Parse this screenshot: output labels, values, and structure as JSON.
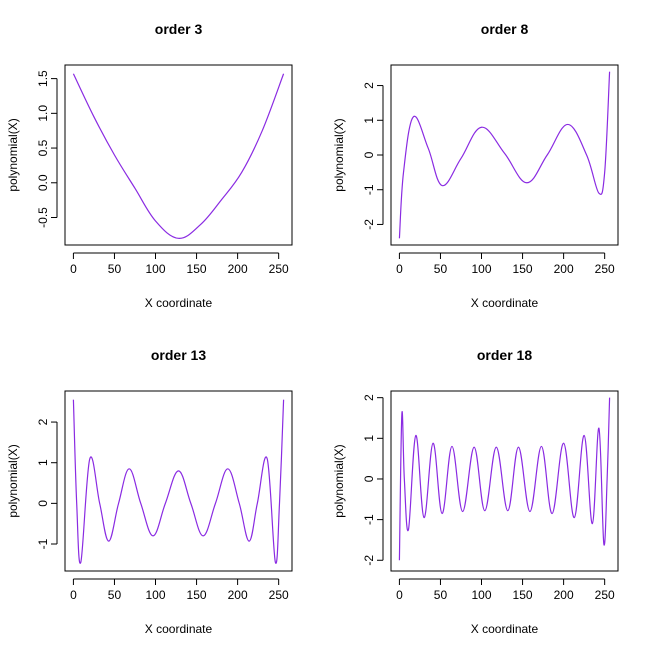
{
  "series_color": "#8a2be2",
  "chart_data": [
    {
      "type": "line",
      "title": "order 3",
      "xlabel": "X coordinate",
      "ylabel": "polynomial(X)",
      "xlim": [
        0,
        256
      ],
      "ylim": [
        -0.8,
        1.6
      ],
      "xticks": [
        0,
        50,
        100,
        150,
        200,
        250
      ],
      "yticks": [
        -0.5,
        0.0,
        0.5,
        1.0,
        1.5
      ],
      "ytick_labels": [
        "-0.5",
        "0.0",
        "0.5",
        "1.0",
        "1.5"
      ],
      "x": [
        0,
        25,
        50,
        75,
        100,
        128,
        155,
        180,
        205,
        230,
        256
      ],
      "y": [
        1.57,
        0.95,
        0.4,
        -0.08,
        -0.55,
        -0.8,
        -0.6,
        -0.25,
        0.15,
        0.75,
        1.57
      ]
    },
    {
      "type": "line",
      "title": "order 8",
      "xlabel": "X coordinate",
      "ylabel": "polynomial(X)",
      "xlim": [
        0,
        256
      ],
      "ylim": [
        -2.4,
        2.4
      ],
      "xticks": [
        0,
        50,
        100,
        150,
        200,
        250
      ],
      "yticks": [
        -2,
        -1,
        0,
        1,
        2
      ],
      "ytick_labels": [
        "-2",
        "-1",
        "0",
        "1",
        "2"
      ],
      "x": [
        0,
        5,
        17,
        35,
        52,
        75,
        100,
        128,
        155,
        180,
        205,
        228,
        243,
        250,
        256
      ],
      "y": [
        -2.4,
        -0.5,
        1.1,
        0.2,
        -0.88,
        -0.1,
        0.8,
        0.05,
        -0.8,
        0.0,
        0.88,
        0.0,
        -1.1,
        -0.5,
        2.4
      ]
    },
    {
      "type": "line",
      "title": "order 13",
      "xlabel": "X coordinate",
      "ylabel": "polynomial(X)",
      "xlim": [
        0,
        256
      ],
      "ylim": [
        -1.5,
        2.6
      ],
      "xticks": [
        0,
        50,
        100,
        150,
        200,
        250
      ],
      "yticks": [
        -1,
        0,
        1,
        2
      ],
      "ytick_labels": [
        "-1",
        "0",
        "1",
        "2"
      ],
      "x": [
        0,
        4,
        9,
        20,
        32,
        43,
        55,
        68,
        82,
        97,
        112,
        128,
        143,
        158,
        173,
        188,
        202,
        214,
        224,
        236,
        246,
        251,
        256
      ],
      "y": [
        2.55,
        0.0,
        -1.45,
        1.1,
        0.0,
        -0.93,
        0.0,
        0.85,
        0.0,
        -0.8,
        0.0,
        0.8,
        0.0,
        -0.8,
        0.0,
        0.85,
        0.0,
        -0.93,
        0.0,
        1.1,
        -1.45,
        0.0,
        2.55
      ]
    },
    {
      "type": "line",
      "title": "order 18",
      "xlabel": "X coordinate",
      "ylabel": "polynomial(X)",
      "xlim": [
        0,
        256
      ],
      "ylim": [
        -2.1,
        2.0
      ],
      "xticks": [
        0,
        50,
        100,
        150,
        200,
        250
      ],
      "yticks": [
        -2,
        -1,
        0,
        1,
        2
      ],
      "ytick_labels": [
        "-2",
        "-1",
        "0",
        "1",
        "2"
      ],
      "x": [
        0,
        3,
        6,
        11,
        20,
        30,
        41,
        52,
        64,
        77,
        91,
        104,
        118,
        132,
        145,
        159,
        173,
        186,
        200,
        213,
        225,
        235,
        243,
        249,
        253,
        256
      ],
      "y": [
        -2.0,
        1.6,
        0.0,
        -1.25,
        1.07,
        -0.95,
        0.88,
        -0.85,
        0.8,
        -0.8,
        0.78,
        -0.78,
        0.78,
        -0.78,
        0.78,
        -0.8,
        0.8,
        -0.85,
        0.88,
        -0.95,
        1.07,
        -1.1,
        1.25,
        -1.6,
        0.0,
        2.0
      ]
    }
  ]
}
